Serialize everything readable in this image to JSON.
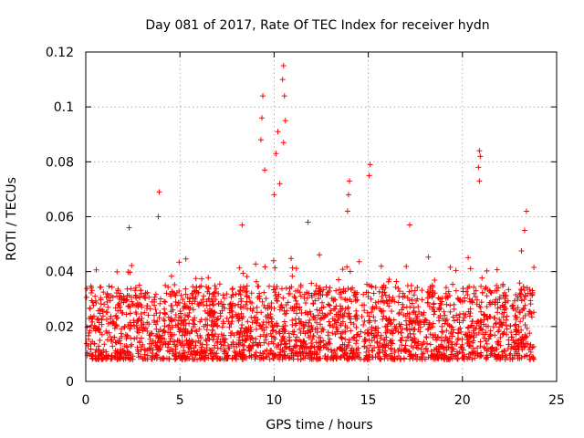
{
  "chart_data": {
    "type": "scatter",
    "title": "Day 081 of 2017, Rate Of TEC Index for receiver hydn",
    "xlabel": "GPS time / hours",
    "ylabel": "ROTI / TECUs",
    "xlim": [
      0,
      25
    ],
    "ylim": [
      0,
      0.12
    ],
    "xticks": [
      0,
      5,
      10,
      15,
      20,
      25
    ],
    "yticks": [
      0,
      0.02,
      0.04,
      0.06,
      0.08,
      0.1,
      0.12
    ],
    "xtick_labels": [
      "0",
      "5",
      "10",
      "15",
      "20",
      "25"
    ],
    "ytick_labels": [
      "0",
      "0.02",
      "0.04",
      "0.06",
      "0.08",
      "0.1",
      "0.12"
    ],
    "grid": true,
    "marker": "+",
    "marker_color": "#ff0000",
    "series": [
      {
        "name": "ROTI",
        "data_time_range": [
          0,
          23.8
        ],
        "typical_range": [
          0.008,
          0.035
        ],
        "spikes": [
          {
            "x": 3.9,
            "y": 0.069
          },
          {
            "x": 3.85,
            "y": 0.06
          },
          {
            "x": 9.4,
            "y": 0.104
          },
          {
            "x": 9.35,
            "y": 0.096
          },
          {
            "x": 9.3,
            "y": 0.088
          },
          {
            "x": 9.5,
            "y": 0.077
          },
          {
            "x": 10.2,
            "y": 0.091
          },
          {
            "x": 10.1,
            "y": 0.083
          },
          {
            "x": 10.0,
            "y": 0.068
          },
          {
            "x": 10.5,
            "y": 0.115
          },
          {
            "x": 10.45,
            "y": 0.11
          },
          {
            "x": 10.55,
            "y": 0.104
          },
          {
            "x": 10.6,
            "y": 0.095
          },
          {
            "x": 10.5,
            "y": 0.087
          },
          {
            "x": 10.3,
            "y": 0.072
          },
          {
            "x": 11.8,
            "y": 0.058
          },
          {
            "x": 14.0,
            "y": 0.073
          },
          {
            "x": 13.95,
            "y": 0.068
          },
          {
            "x": 13.9,
            "y": 0.062
          },
          {
            "x": 15.1,
            "y": 0.079
          },
          {
            "x": 15.05,
            "y": 0.075
          },
          {
            "x": 20.9,
            "y": 0.084
          },
          {
            "x": 20.95,
            "y": 0.082
          },
          {
            "x": 20.85,
            "y": 0.078
          },
          {
            "x": 20.9,
            "y": 0.073
          },
          {
            "x": 23.4,
            "y": 0.062
          },
          {
            "x": 23.3,
            "y": 0.055
          },
          {
            "x": 2.3,
            "y": 0.056
          },
          {
            "x": 8.3,
            "y": 0.057
          },
          {
            "x": 17.2,
            "y": 0.057
          }
        ]
      }
    ]
  }
}
